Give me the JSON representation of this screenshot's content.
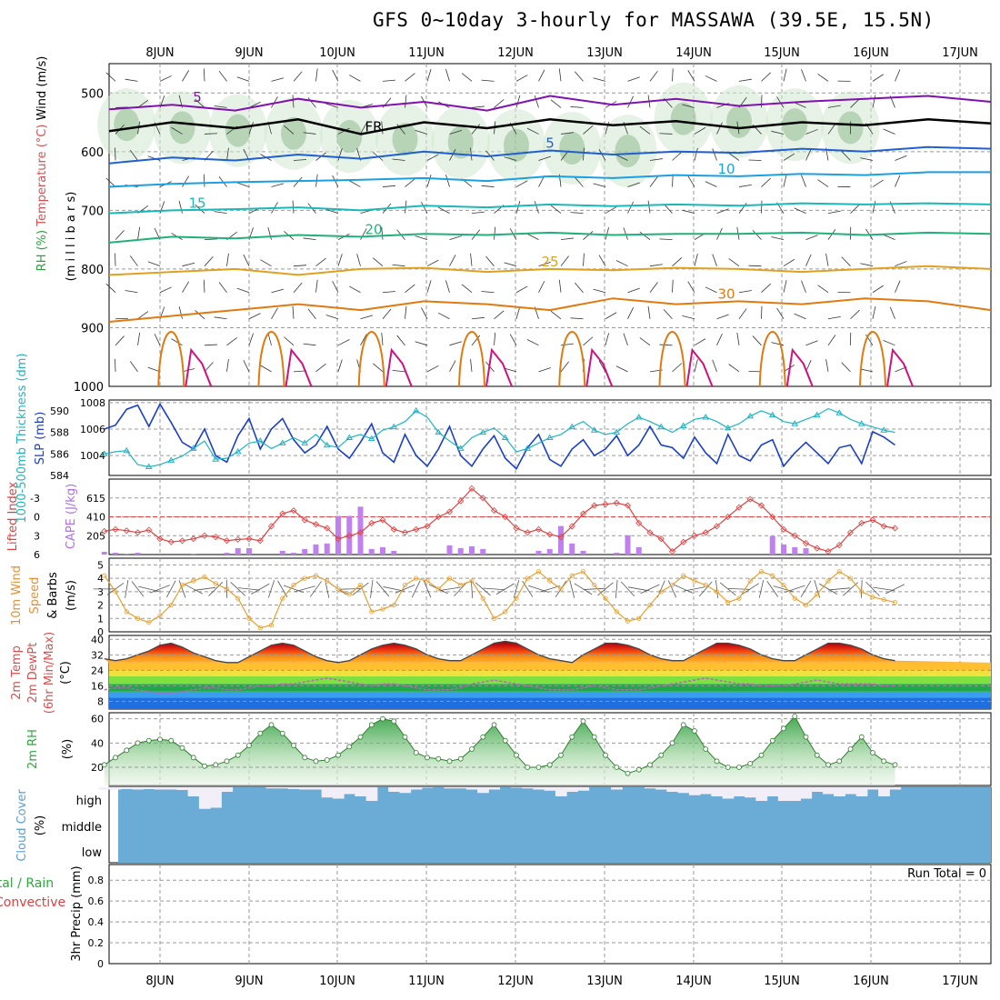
{
  "header": {
    "title": "GFS 0~10day 3-hourly for MASSAWA (39.5E, 15.5N)"
  },
  "colors": {
    "temp_warm": "#e07a10",
    "temp_mid": "#1aa8c0",
    "temp_cold": "#1f5fd0",
    "temp_freeze": "#000000",
    "wind_upper": "#8010b0",
    "rh_fill": "#4caf50",
    "slp": "#1a3fc8",
    "thickness": "#1fb5c2",
    "lifted_index": "#e04040",
    "cape_bar": "#c080f0",
    "wind10": "#e8a030",
    "cloud": "#6aacd6",
    "grid": "#aaaaaa"
  },
  "chart_data": [
    {
      "id": "upper_air",
      "type": "line",
      "ylabel_parts": [
        {
          "text": "RH (%)",
          "color": "#2e9e3e"
        },
        {
          "text": "Temperature (°C)",
          "color": "#d85050"
        },
        {
          "text": "Wind (m/s)",
          "color": "#000000"
        }
      ],
      "ylabel2": "(m i l l i b a r s)",
      "yticks": [
        500,
        600,
        700,
        800,
        900,
        1000
      ],
      "ylim": [
        450,
        1000
      ],
      "x_day_labels": [
        "8JUN",
        "9JUN",
        "10JUN",
        "11JUN",
        "12JUN",
        "13JUN",
        "14JUN",
        "15JUN",
        "16JUN",
        "17JUN"
      ],
      "isotherms": [
        {
          "label": "5",
          "color": "#8010b0",
          "values": [
            528,
            520,
            530,
            510,
            525,
            515,
            530,
            505,
            520,
            510,
            522,
            515,
            510,
            505,
            515
          ]
        },
        {
          "label": "FR",
          "color": "#000000",
          "values": [
            565,
            550,
            560,
            545,
            570,
            550,
            560,
            545,
            555,
            548,
            560,
            550,
            555,
            545,
            552
          ]
        },
        {
          "label": "5",
          "color": "#1f5fd0",
          "values": [
            620,
            610,
            615,
            605,
            612,
            600,
            608,
            598,
            605,
            600,
            602,
            595,
            600,
            592,
            595
          ]
        },
        {
          "label": "10",
          "color": "#1aa0e0",
          "values": [
            660,
            655,
            652,
            650,
            648,
            645,
            650,
            642,
            645,
            640,
            642,
            638,
            640,
            635,
            635
          ]
        },
        {
          "label": "15",
          "color": "#1ab8b8",
          "values": [
            705,
            700,
            698,
            695,
            700,
            692,
            695,
            690,
            693,
            690,
            692,
            688,
            690,
            688,
            690
          ]
        },
        {
          "label": "20",
          "color": "#22b07a",
          "values": [
            755,
            745,
            748,
            742,
            745,
            740,
            742,
            738,
            742,
            740,
            740,
            738,
            742,
            738,
            740
          ]
        },
        {
          "label": "25",
          "color": "#e0a020",
          "values": [
            810,
            805,
            800,
            810,
            800,
            798,
            805,
            800,
            802,
            798,
            800,
            805,
            800,
            795,
            800
          ]
        },
        {
          "label": "30",
          "color": "#e07a10",
          "values": [
            890,
            880,
            870,
            860,
            870,
            855,
            860,
            870,
            850,
            860,
            855,
            860,
            850,
            855,
            870
          ]
        }
      ]
    },
    {
      "id": "slp_thickness",
      "type": "line",
      "ylabel_left": "1000-500mb Thickness (dm)",
      "ylabel_right": "SLP (mb)",
      "yticks_left": [
        584,
        586,
        588,
        590
      ],
      "yticks_right": [
        1004,
        1006,
        1008
      ],
      "ylim_left": [
        584,
        591
      ],
      "ylim_right": [
        1002.5,
        1008.2
      ],
      "series": [
        {
          "name": "SLP (mb)",
          "axis": "right",
          "color": "#1a3fc8",
          "values": [
            1006.0,
            1006.3,
            1007.5,
            1007.8,
            1006.2,
            1007.9,
            1006.5,
            1005.0,
            1004.5,
            1006.0,
            1004.0,
            1003.5,
            1005.5,
            1006.8,
            1004.5,
            1006.0,
            1006.8,
            1005.2,
            1004.2,
            1004.8,
            1006.2,
            1004.5,
            1003.8,
            1005.0,
            1006.4,
            1004.2,
            1003.5,
            1005.6,
            1004.0,
            1003.2,
            1004.5,
            1006.2,
            1004.0,
            1003.2,
            1004.5,
            1005.5,
            1003.8,
            1003.0,
            1004.6,
            1005.6,
            1003.7,
            1003.2,
            1004.5,
            1005.2,
            1004.0,
            1004.5,
            1005.5,
            1004.0,
            1004.8,
            1006.2,
            1004.8,
            1004.6,
            1003.8,
            1005.4,
            1004.2,
            1003.4,
            1005.6,
            1004.0,
            1003.6,
            1004.8,
            1005.2,
            1003.2,
            1004.2,
            1005.0,
            1004.2,
            1003.4,
            1004.6,
            1004.8,
            1003.4,
            1005.8,
            1005.4,
            1004.8
          ]
        },
        {
          "name": "1000-500mb Thickness (dm)",
          "axis": "left",
          "color": "#1fb5c2",
          "values": [
            586.0,
            586.2,
            586.3,
            585.0,
            584.8,
            585.0,
            585.4,
            585.8,
            586.5,
            587.2,
            585.5,
            585.6,
            586.2,
            587.0,
            587.2,
            586.5,
            587.0,
            587.5,
            587.0,
            587.8,
            586.8,
            586.6,
            587.5,
            587.8,
            587.4,
            588.2,
            588.5,
            589.0,
            590.0,
            589.4,
            588.0,
            587.2,
            586.5,
            587.5,
            588.0,
            588.4,
            587.5,
            586.2,
            586.5,
            587.0,
            587.5,
            587.8,
            588.5,
            589.0,
            588.2,
            587.8,
            588.0,
            588.8,
            589.4,
            589.0,
            588.5,
            588.0,
            588.6,
            589.2,
            589.4,
            589.0,
            588.4,
            588.8,
            589.5,
            590.0,
            589.6,
            589.0,
            588.8,
            589.2,
            589.6,
            590.2,
            589.8,
            589.2,
            588.8,
            588.5,
            588.2,
            588.0
          ]
        }
      ]
    },
    {
      "id": "lifted_cape",
      "type": "bar",
      "ylabel_left": "Lifted Index",
      "ylabel_right": "CAPE (J/kg)",
      "yticks_left": [
        -3,
        0,
        3,
        6
      ],
      "yticks_right": [
        205,
        410,
        615
      ],
      "ylim_left": [
        6,
        -6
      ],
      "ylim_right": [
        0,
        820
      ],
      "lifted_index": [
        2.3,
        2.0,
        2.2,
        2.5,
        2.1,
        3.5,
        4.0,
        3.8,
        3.5,
        3.0,
        3.2,
        3.8,
        3.6,
        3.5,
        3.8,
        1.5,
        -0.5,
        -1.0,
        0.5,
        1.2,
        1.8,
        3.5,
        3.0,
        2.5,
        1.0,
        0.5,
        2.0,
        2.5,
        2.0,
        1.5,
        0.0,
        -0.8,
        -2.5,
        -4.5,
        -3.0,
        -1.0,
        0.0,
        1.8,
        2.5,
        2.0,
        2.8,
        3.2,
        1.5,
        -0.5,
        -1.8,
        -2.0,
        -2.2,
        -1.8,
        1.0,
        2.5,
        3.5,
        5.5,
        4.0,
        3.0,
        2.5,
        1.5,
        0.0,
        -1.5,
        -2.8,
        -1.8,
        0.0,
        2.0,
        3.0,
        4.2,
        5.0,
        5.5,
        4.5,
        2.5,
        1.0,
        0.5,
        1.5,
        1.8
      ],
      "cape": [
        30,
        20,
        10,
        20,
        0,
        0,
        0,
        0,
        10,
        0,
        0,
        20,
        70,
        70,
        0,
        0,
        40,
        20,
        60,
        110,
        120,
        420,
        420,
        520,
        60,
        80,
        40,
        0,
        0,
        0,
        0,
        100,
        70,
        90,
        60,
        0,
        0,
        0,
        0,
        40,
        60,
        310,
        120,
        40,
        0,
        0,
        20,
        210,
        80,
        0,
        0,
        10,
        0,
        0,
        0,
        0,
        0,
        0,
        0,
        0,
        200,
        110,
        80,
        70,
        0,
        0,
        0,
        0,
        0,
        0,
        0,
        0
      ]
    },
    {
      "id": "wind10m",
      "type": "line",
      "ylabel": "10m Wind Speed & Barbs (m/s)",
      "ylabel_parts": [
        {
          "text": "10m Wind",
          "color": "#e89030"
        },
        {
          "text": "Speed",
          "color": "#e89030"
        },
        {
          "text": "& Barbs",
          "color": "#000000"
        },
        {
          "text": "(m/s)",
          "color": "#000000"
        }
      ],
      "yticks": [
        0,
        1,
        2,
        3,
        4,
        5
      ],
      "ylim": [
        0,
        5.5
      ],
      "values": [
        4.2,
        3.0,
        1.5,
        1.0,
        0.7,
        1.2,
        2.0,
        3.5,
        3.8,
        4.1,
        3.6,
        3.2,
        2.5,
        1.0,
        0.3,
        0.5,
        2.5,
        3.5,
        4.0,
        4.2,
        3.8,
        3.2,
        2.8,
        3.5,
        1.5,
        1.7,
        2.0,
        3.5,
        4.0,
        3.8,
        3.2,
        4.0,
        3.5,
        3.8,
        2.5,
        1.0,
        1.5,
        2.5,
        4.0,
        4.5,
        3.8,
        3.2,
        4.2,
        4.5,
        3.5,
        2.5,
        1.5,
        0.8,
        1.0,
        2.0,
        3.0,
        3.5,
        4.2,
        3.8,
        3.5,
        3.0,
        2.2,
        2.5,
        3.8,
        4.5,
        4.2,
        3.5,
        2.5,
        2.0,
        2.8,
        3.8,
        4.5,
        4.0,
        3.0,
        2.6,
        2.4,
        2.2
      ]
    },
    {
      "id": "temp2m",
      "type": "area",
      "ylabel_parts": [
        {
          "text": "2m Temp",
          "color": "#d85050"
        },
        {
          "text": "2m DewPt",
          "color": "#d85050"
        },
        {
          "text": "(6hr Min/Max)",
          "color": "#d85050"
        },
        {
          "text": "(°C)",
          "color": "#000000"
        }
      ],
      "yticks": [
        8,
        16,
        24,
        32,
        40
      ],
      "ylim": [
        4,
        42
      ],
      "temperature": [
        30,
        29,
        30,
        32,
        34,
        37,
        38,
        36,
        33,
        31,
        29,
        28,
        28,
        31,
        34,
        37,
        38,
        37,
        34,
        31,
        29,
        28,
        29,
        32,
        35,
        37,
        38,
        37,
        35,
        32,
        30,
        29,
        29,
        32,
        35,
        38,
        39,
        38,
        35,
        32,
        30,
        29,
        28,
        32,
        35,
        38,
        38,
        37,
        35,
        32,
        30,
        29,
        29,
        32,
        35,
        38,
        38,
        37,
        35,
        32,
        30,
        29,
        29,
        32,
        35,
        38,
        38,
        37,
        35,
        32,
        30,
        29
      ],
      "dewpoint": [
        14,
        15,
        15,
        14,
        13,
        12,
        12,
        13,
        14,
        15,
        15,
        14,
        14,
        15,
        16,
        16,
        17,
        17,
        18,
        19,
        20,
        19,
        18,
        17,
        16,
        17,
        17,
        16,
        15,
        14,
        14,
        14,
        15,
        17,
        18,
        19,
        18,
        17,
        16,
        15,
        14,
        14,
        14,
        15,
        16,
        15,
        14,
        14,
        14,
        15,
        16,
        17,
        18,
        19,
        20,
        19,
        18,
        17,
        17,
        16,
        16,
        16,
        17,
        18,
        19,
        18,
        17,
        17,
        17,
        17,
        16,
        16
      ]
    },
    {
      "id": "rh2m",
      "type": "area",
      "ylabel": "2m RH",
      "ylabel2": "(%)",
      "yticks": [
        20,
        40,
        60
      ],
      "ylim": [
        5,
        65
      ],
      "values": [
        22,
        28,
        34,
        40,
        42,
        43,
        42,
        36,
        28,
        21,
        22,
        25,
        30,
        38,
        48,
        55,
        48,
        38,
        28,
        25,
        26,
        30,
        37,
        45,
        55,
        60,
        58,
        45,
        32,
        28,
        27,
        25,
        27,
        35,
        45,
        55,
        42,
        30,
        20,
        20,
        22,
        30,
        45,
        58,
        45,
        30,
        20,
        15,
        18,
        22,
        30,
        40,
        55,
        50,
        35,
        25,
        20,
        20,
        23,
        30,
        42,
        52,
        62,
        45,
        30,
        22,
        25,
        35,
        45,
        32,
        25,
        22
      ]
    },
    {
      "id": "cloud_cover",
      "type": "heatmap",
      "ylabel": "Cloud Cover",
      "ylabel2": "(%)",
      "levels": [
        "high",
        "middle",
        "low"
      ],
      "high_values": [
        90,
        90,
        92,
        90,
        92,
        90,
        90,
        88,
        60,
        5,
        10,
        80,
        100,
        100,
        100,
        95,
        95,
        92,
        90,
        90,
        55,
        50,
        70,
        60,
        40,
        100,
        80,
        75,
        90,
        98,
        100,
        95,
        95,
        90,
        75,
        90,
        100,
        98,
        95,
        90,
        85,
        60,
        80,
        85,
        100,
        100,
        90,
        100,
        100,
        95,
        90,
        80,
        75,
        65,
        70,
        60,
        50,
        60,
        55,
        40,
        60,
        40,
        40,
        50,
        80,
        70,
        60,
        70,
        60,
        90,
        60,
        90
      ]
    },
    {
      "id": "precip",
      "type": "bar",
      "ylabel": "3hr Precip (mm)",
      "ylabel_left_parts": [
        {
          "text": "Total / Rain",
          "color": "#2ea83e"
        },
        {
          "text": "Convective",
          "color": "#e04040"
        }
      ],
      "yticks": [
        "0",
        "0.2",
        "0.4",
        "0.6",
        "0.8"
      ],
      "ylim": [
        0,
        0.95
      ],
      "run_total": "Run Total = 0",
      "values": []
    }
  ]
}
